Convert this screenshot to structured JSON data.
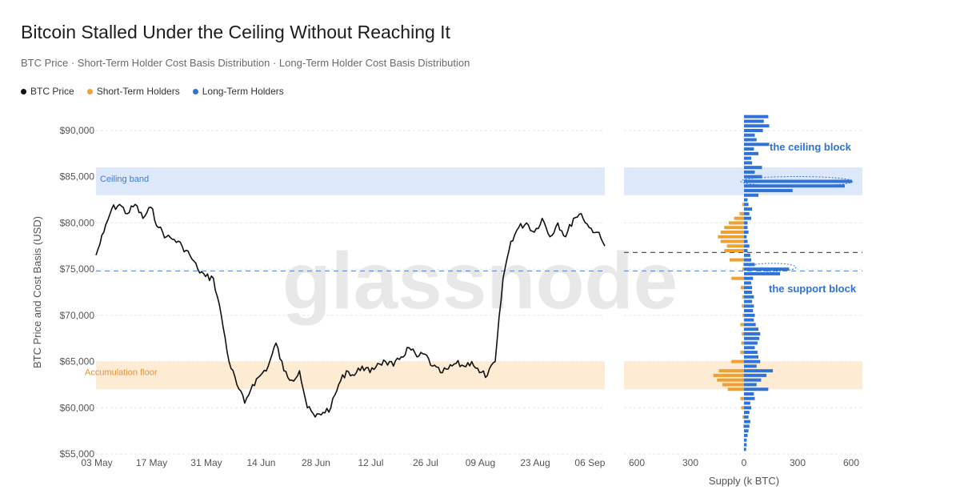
{
  "title": "Bitcoin Stalled Under the Ceiling Without Reaching It",
  "subtitle": "BTC Price · Short-Term Holder Cost Basis Distribution · Long-Term Holder Cost Basis Distribution",
  "legend": [
    {
      "label": "BTC Price",
      "color": "#111111"
    },
    {
      "label": "Short-Term Holders",
      "color": "#f0a030"
    },
    {
      "label": "Long-Term Holders",
      "color": "#2f72d8"
    }
  ],
  "watermark": "glassnode",
  "chart_data": [
    {
      "type": "line",
      "name": "price",
      "ylabel": "BTC Price and Cost Basis (USD)",
      "ylim": [
        55000,
        92000
      ],
      "yticks": [
        55000,
        60000,
        65000,
        70000,
        75000,
        80000,
        85000,
        90000
      ],
      "ytick_labels": [
        "$55,000",
        "$60,000",
        "$65,000",
        "$70,000",
        "$75,000",
        "$80,000",
        "$85,000",
        "$90,000"
      ],
      "xticks": [
        "03 May",
        "17 May",
        "31 May",
        "14 Jun",
        "28 Jun",
        "12 Jul",
        "26 Jul",
        "09 Aug",
        "23 Aug",
        "06 Sep"
      ],
      "bands": [
        {
          "label": "Ceiling band",
          "from": 83000,
          "to": 86000,
          "color": "#dde9fb"
        },
        {
          "label": "Accumulation floor",
          "from": 62000,
          "to": 65000,
          "color": "#fdebd3"
        }
      ],
      "reference_lines": [
        {
          "value": 74800,
          "color": "#5a8fd6"
        },
        {
          "value": 76800,
          "color": "#555555"
        }
      ],
      "series": [
        {
          "name": "BTC Price",
          "color": "#111111",
          "x": [
            "2025-05-03",
            "2025-05-05",
            "2025-05-07",
            "2025-05-09",
            "2025-05-11",
            "2025-05-13",
            "2025-05-15",
            "2025-05-17",
            "2025-05-19",
            "2025-05-21",
            "2025-05-23",
            "2025-05-25",
            "2025-05-27",
            "2025-05-29",
            "2025-05-31",
            "2025-06-02",
            "2025-06-04",
            "2025-06-06",
            "2025-06-08",
            "2025-06-10",
            "2025-06-12",
            "2025-06-14",
            "2025-06-16",
            "2025-06-18",
            "2025-06-20",
            "2025-06-22",
            "2025-06-24",
            "2025-06-26",
            "2025-06-28",
            "2025-06-30",
            "2025-07-02",
            "2025-07-04",
            "2025-07-06",
            "2025-07-08",
            "2025-07-10",
            "2025-07-12",
            "2025-07-14",
            "2025-07-16",
            "2025-07-18",
            "2025-07-20",
            "2025-07-22",
            "2025-07-24",
            "2025-07-26",
            "2025-07-28",
            "2025-07-30",
            "2025-08-01",
            "2025-08-03",
            "2025-08-05",
            "2025-08-07",
            "2025-08-09",
            "2025-08-11",
            "2025-08-13",
            "2025-08-15",
            "2025-08-17",
            "2025-08-19",
            "2025-08-21",
            "2025-08-23",
            "2025-08-25",
            "2025-08-27",
            "2025-08-29",
            "2025-08-31",
            "2025-09-02",
            "2025-09-04",
            "2025-09-06",
            "2025-09-08",
            "2025-09-10"
          ],
          "y": [
            76500,
            79000,
            81500,
            82000,
            81000,
            82000,
            80500,
            81700,
            79500,
            78500,
            78200,
            77500,
            76500,
            75000,
            74200,
            74000,
            70000,
            65000,
            62500,
            60500,
            62500,
            63500,
            64500,
            67000,
            64000,
            63000,
            64000,
            60000,
            59000,
            59500,
            60000,
            62500,
            64000,
            63500,
            64500,
            63800,
            64800,
            65000,
            64500,
            65500,
            66500,
            65500,
            65800,
            64500,
            63800,
            64200,
            64800,
            64500,
            65000,
            63800,
            63500,
            65000,
            74000,
            78000,
            79500,
            80000,
            79000,
            80500,
            78500,
            80000,
            78500,
            80500,
            81000,
            79500,
            79000,
            77500
          ]
        }
      ]
    },
    {
      "type": "bar",
      "name": "supply_distribution",
      "orientation": "horizontal",
      "xlabel": "Supply (k BTC)",
      "xticks": [
        600,
        300,
        0,
        300,
        600
      ],
      "series": [
        {
          "name": "Short-Term Holders",
          "color": "#f0a030",
          "price": [
            58000,
            59000,
            60000,
            61000,
            62000,
            62500,
            63000,
            63500,
            64000,
            65000,
            66000,
            67000,
            68000,
            69000,
            70000,
            71000,
            72000,
            73000,
            74000,
            75000,
            75500,
            76000,
            77000,
            77500,
            78000,
            78500,
            79000,
            79500,
            80000,
            80500,
            81000,
            82000
          ],
          "values": [
            5,
            8,
            15,
            20,
            90,
            120,
            150,
            170,
            140,
            70,
            20,
            15,
            12,
            20,
            8,
            12,
            10,
            18,
            70,
            10,
            5,
            80,
            110,
            95,
            130,
            145,
            130,
            110,
            85,
            55,
            25,
            10
          ]
        },
        {
          "name": "Long-Term Holders",
          "color": "#2f72d8",
          "price": [
            55500,
            56000,
            56500,
            57000,
            57500,
            58000,
            58500,
            59000,
            59500,
            60000,
            60500,
            61000,
            61500,
            62000,
            62500,
            63000,
            63500,
            64000,
            64500,
            65000,
            65500,
            66000,
            66500,
            67000,
            67500,
            68000,
            68500,
            69000,
            69500,
            70000,
            70500,
            71000,
            71500,
            72000,
            72500,
            73000,
            73500,
            74000,
            74500,
            75000,
            75500,
            76000,
            76500,
            77000,
            77500,
            78000,
            78500,
            79000,
            79500,
            80000,
            80500,
            81000,
            81500,
            82000,
            82500,
            83000,
            83500,
            84000,
            84500,
            85000,
            85500,
            86000,
            86500,
            87000,
            87500,
            88000,
            88500,
            89000,
            89500,
            90000,
            90500,
            91000,
            91500
          ],
          "values": [
            12,
            15,
            15,
            20,
            25,
            30,
            35,
            25,
            30,
            40,
            35,
            60,
            55,
            135,
            70,
            95,
            125,
            160,
            70,
            90,
            80,
            75,
            60,
            75,
            85,
            90,
            80,
            65,
            55,
            60,
            50,
            55,
            45,
            55,
            45,
            45,
            40,
            50,
            200,
            250,
            60,
            40,
            35,
            20,
            30,
            20,
            15,
            25,
            20,
            20,
            40,
            30,
            45,
            25,
            20,
            80,
            270,
            560,
            600,
            100,
            60,
            100,
            45,
            40,
            80,
            55,
            140,
            70,
            60,
            105,
            140,
            110,
            135
          ]
        }
      ],
      "annotations": [
        {
          "label": "the ceiling block",
          "color": "#2f72d8"
        },
        {
          "label": "the support block",
          "color": "#2f72d8"
        }
      ]
    }
  ]
}
